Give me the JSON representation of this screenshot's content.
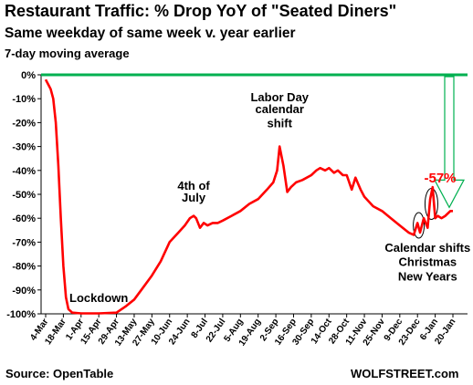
{
  "header": {
    "title": "Restaurant Traffic: % Drop YoY of \"Seated Diners\"",
    "subtitle": "Same weekday of same week v. year earlier",
    "subtitle2": "7-day moving average"
  },
  "footer": {
    "source": "Source: OpenTable",
    "brand": "WOLFSTREET.com"
  },
  "chart_data": {
    "type": "line",
    "title": "Restaurant Traffic: % Drop YoY of \"Seated Diners\"",
    "subtitle": "Same weekday of same week v. year earlier",
    "xlabel": "",
    "ylabel": "",
    "grid": false,
    "ylim": [
      -100,
      0
    ],
    "y_ticks": [
      0,
      -10,
      -20,
      -30,
      -40,
      -50,
      -60,
      -70,
      -80,
      -90,
      -100
    ],
    "y_tick_labels": [
      "0%",
      "-10%",
      "-20%",
      "-30%",
      "-40%",
      "-50%",
      "-60%",
      "-70%",
      "-80%",
      "-90%",
      "-100%"
    ],
    "x_tick_labels": [
      "4-Mar",
      "18-Mar",
      "1-Apr",
      "15-Apr",
      "29-Apr",
      "13-May",
      "27-May",
      "10-Jun",
      "24-Jun",
      "8-Jul",
      "22-Jul",
      "5-Aug",
      "19-Aug",
      "2-Sep",
      "16-Sep",
      "30-Sep",
      "14-Oct",
      "28-Oct",
      "11-Nov",
      "25-Nov",
      "9-Dec",
      "23-Dec",
      "6-Jan",
      "20-Jan"
    ],
    "series": [
      {
        "color": "#ff0000",
        "points": [
          {
            "x": "2020-03-04",
            "y": -2
          },
          {
            "x": "2020-03-06",
            "y": -4
          },
          {
            "x": "2020-03-08",
            "y": -6
          },
          {
            "x": "2020-03-10",
            "y": -10
          },
          {
            "x": "2020-03-12",
            "y": -20
          },
          {
            "x": "2020-03-14",
            "y": -38
          },
          {
            "x": "2020-03-16",
            "y": -60
          },
          {
            "x": "2020-03-18",
            "y": -80
          },
          {
            "x": "2020-03-20",
            "y": -93
          },
          {
            "x": "2020-03-22",
            "y": -98
          },
          {
            "x": "2020-03-25",
            "y": -99.5
          },
          {
            "x": "2020-04-01",
            "y": -99.8
          },
          {
            "x": "2020-04-15",
            "y": -99.8
          },
          {
            "x": "2020-04-29",
            "y": -99.5
          },
          {
            "x": "2020-05-06",
            "y": -97
          },
          {
            "x": "2020-05-13",
            "y": -94
          },
          {
            "x": "2020-05-20",
            "y": -89
          },
          {
            "x": "2020-05-27",
            "y": -84
          },
          {
            "x": "2020-06-03",
            "y": -78
          },
          {
            "x": "2020-06-10",
            "y": -70
          },
          {
            "x": "2020-06-17",
            "y": -66
          },
          {
            "x": "2020-06-22",
            "y": -63
          },
          {
            "x": "2020-06-26",
            "y": -60
          },
          {
            "x": "2020-06-29",
            "y": -59
          },
          {
            "x": "2020-07-01",
            "y": -60
          },
          {
            "x": "2020-07-04",
            "y": -64
          },
          {
            "x": "2020-07-07",
            "y": -62
          },
          {
            "x": "2020-07-10",
            "y": -63
          },
          {
            "x": "2020-07-14",
            "y": -62
          },
          {
            "x": "2020-07-18",
            "y": -62
          },
          {
            "x": "2020-07-22",
            "y": -61
          },
          {
            "x": "2020-07-29",
            "y": -59
          },
          {
            "x": "2020-08-05",
            "y": -57
          },
          {
            "x": "2020-08-12",
            "y": -54
          },
          {
            "x": "2020-08-19",
            "y": -52
          },
          {
            "x": "2020-08-26",
            "y": -48
          },
          {
            "x": "2020-08-31",
            "y": -45
          },
          {
            "x": "2020-09-03",
            "y": -40
          },
          {
            "x": "2020-09-05",
            "y": -30
          },
          {
            "x": "2020-09-08",
            "y": -38
          },
          {
            "x": "2020-09-11",
            "y": -49
          },
          {
            "x": "2020-09-14",
            "y": -47
          },
          {
            "x": "2020-09-18",
            "y": -45
          },
          {
            "x": "2020-09-23",
            "y": -44
          },
          {
            "x": "2020-09-30",
            "y": -42
          },
          {
            "x": "2020-10-04",
            "y": -40
          },
          {
            "x": "2020-10-07",
            "y": -39
          },
          {
            "x": "2020-10-11",
            "y": -40
          },
          {
            "x": "2020-10-14",
            "y": -39
          },
          {
            "x": "2020-10-18",
            "y": -41
          },
          {
            "x": "2020-10-21",
            "y": -40
          },
          {
            "x": "2020-10-25",
            "y": -42
          },
          {
            "x": "2020-10-28",
            "y": -42
          },
          {
            "x": "2020-11-01",
            "y": -48
          },
          {
            "x": "2020-11-04",
            "y": -43
          },
          {
            "x": "2020-11-08",
            "y": -48
          },
          {
            "x": "2020-11-11",
            "y": -51
          },
          {
            "x": "2020-11-18",
            "y": -55
          },
          {
            "x": "2020-11-25",
            "y": -57
          },
          {
            "x": "2020-12-02",
            "y": -60
          },
          {
            "x": "2020-12-09",
            "y": -63
          },
          {
            "x": "2020-12-16",
            "y": -66
          },
          {
            "x": "2020-12-20",
            "y": -67
          },
          {
            "x": "2020-12-23",
            "y": -62
          },
          {
            "x": "2020-12-25",
            "y": -66
          },
          {
            "x": "2020-12-28",
            "y": -60
          },
          {
            "x": "2020-12-31",
            "y": -64
          },
          {
            "x": "2021-01-02",
            "y": -52
          },
          {
            "x": "2021-01-04",
            "y": -47
          },
          {
            "x": "2021-01-06",
            "y": -60
          },
          {
            "x": "2021-01-08",
            "y": -59
          },
          {
            "x": "2021-01-11",
            "y": -60
          },
          {
            "x": "2021-01-14",
            "y": -59
          },
          {
            "x": "2021-01-18",
            "y": -57
          },
          {
            "x": "2021-01-20",
            "y": -57
          }
        ]
      }
    ],
    "annotations": [
      {
        "text": "Lockdown",
        "anchor_x": "2020-04-15",
        "anchor_y": -95
      },
      {
        "text": "4th of",
        "anchor_x": "2020-06-29",
        "anchor_y": -48
      },
      {
        "text": "July",
        "anchor_x": "2020-06-29",
        "anchor_y": -53
      },
      {
        "text": "Labor Day",
        "anchor_x": "2020-09-05",
        "anchor_y": -11
      },
      {
        "text": "calendar",
        "anchor_x": "2020-09-05",
        "anchor_y": -16
      },
      {
        "text": "shift",
        "anchor_x": "2020-09-05",
        "anchor_y": -22
      },
      {
        "text": "Calendar shifts",
        "anchor_x": "2020-12-31",
        "anchor_y": -74
      },
      {
        "text": "Christmas",
        "anchor_x": "2020-12-31",
        "anchor_y": -80
      },
      {
        "text": "New Years",
        "anchor_x": "2020-12-31",
        "anchor_y": -86
      }
    ],
    "callout": {
      "text": "-57%",
      "color": "#ff0000"
    },
    "reference_line": {
      "y": 0,
      "color": "#00b050"
    }
  }
}
